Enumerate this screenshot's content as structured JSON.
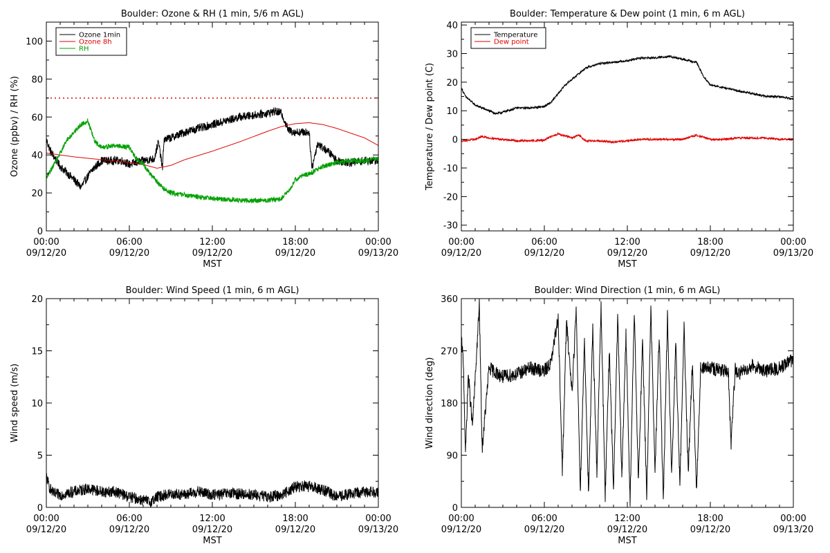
{
  "chart_data": [
    {
      "type": "line",
      "title": "Boulder: Ozone & RH (1 min, 5/6 m AGL)",
      "xlabel": "MST",
      "ylabel": "Ozone (ppbv) / RH (%)",
      "xlim": [
        "09/12/20 00:00",
        "09/13/20 00:00"
      ],
      "xtick_times": [
        "00:00",
        "06:00",
        "12:00",
        "18:00",
        "00:00"
      ],
      "xtick_dates": [
        "09/12/20",
        "09/12/20",
        "09/12/20",
        "09/12/20",
        "09/13/20"
      ],
      "ylim": [
        0,
        110
      ],
      "yticks": [
        0,
        20,
        40,
        60,
        80,
        100
      ],
      "grid": false,
      "legend": "top-left",
      "reference_line": {
        "y": 70,
        "color": "#e00000",
        "style": "dotted"
      },
      "series": [
        {
          "name": "Ozone 1min",
          "color": "#000000",
          "noise": 2.2,
          "x": [
            0,
            0.3,
            1,
            2,
            2.5,
            3.3,
            4,
            5.5,
            6,
            7,
            7.8,
            8.1,
            8.4,
            8.5,
            9,
            10,
            11,
            12,
            13,
            14,
            15,
            16,
            16.5,
            17,
            17.5,
            18,
            19,
            19.2,
            19.6,
            20.5,
            21,
            22,
            23,
            24
          ],
          "y": [
            48,
            42,
            34,
            27,
            23,
            32,
            37,
            37,
            35,
            37,
            38,
            47,
            33,
            48,
            49,
            52,
            54,
            56,
            58,
            60,
            61,
            62,
            63,
            62,
            53,
            52,
            52,
            33,
            46,
            41,
            37,
            36,
            37,
            37
          ]
        },
        {
          "name": "Ozone 8h",
          "color": "#e00000",
          "noise": 0,
          "x": [
            0,
            2,
            4,
            6,
            7,
            8,
            9,
            10,
            12,
            14,
            16,
            17,
            18,
            19,
            20,
            21,
            22,
            23,
            24
          ],
          "y": [
            41,
            39,
            37.5,
            36,
            35,
            33,
            34.5,
            37.5,
            42,
            47,
            52.5,
            55,
            56.5,
            57,
            56,
            54,
            51.5,
            49,
            45
          ]
        },
        {
          "name": "RH",
          "color": "#00a000",
          "noise": 1.3,
          "x": [
            0,
            0.4,
            1,
            1.5,
            2,
            2.5,
            3,
            3.5,
            4,
            5,
            6,
            6.5,
            7,
            7.5,
            8,
            8.5,
            9,
            10,
            11,
            12,
            14,
            16,
            17,
            17.5,
            18,
            18.5,
            19,
            20,
            21,
            22,
            23,
            24
          ],
          "y": [
            28,
            33,
            41,
            48,
            52,
            56,
            58,
            47,
            44,
            45,
            44,
            38,
            35,
            30,
            26,
            22,
            20,
            19,
            18,
            17,
            16,
            16,
            17,
            21,
            27,
            29,
            30,
            34,
            36,
            37,
            37,
            38
          ]
        }
      ]
    },
    {
      "type": "line",
      "title": "Boulder: Temperature & Dew point (1 min, 6 m AGL)",
      "xlabel": "MST",
      "ylabel": "Temperature / Dew point (C)",
      "xlim": [
        "09/12/20 00:00",
        "09/13/20 00:00"
      ],
      "xtick_times": [
        "00:00",
        "06:00",
        "12:00",
        "18:00",
        "00:00"
      ],
      "xtick_dates": [
        "09/12/20",
        "09/12/20",
        "09/12/20",
        "09/12/20",
        "09/13/20"
      ],
      "ylim": [
        -32,
        41
      ],
      "yticks": [
        -30,
        -20,
        -10,
        0,
        10,
        20,
        30,
        40
      ],
      "grid": false,
      "legend": "top-left",
      "series": [
        {
          "name": "Temperature",
          "color": "#000000",
          "noise": 0.35,
          "x": [
            0,
            0.3,
            1,
            2,
            2.5,
            3,
            4,
            5,
            6,
            6.5,
            7,
            7.5,
            8,
            9,
            10,
            11,
            12,
            13,
            14,
            15,
            16,
            16.5,
            17,
            17.5,
            18,
            19,
            20,
            21,
            22,
            23,
            24
          ],
          "y": [
            18,
            15,
            12,
            10,
            9,
            9.5,
            11,
            11,
            11.5,
            13,
            16,
            19,
            21,
            25,
            26.5,
            27,
            27.5,
            28.5,
            28.5,
            29,
            28,
            27.5,
            27,
            22,
            19,
            18,
            17,
            16,
            15,
            15,
            14
          ]
        },
        {
          "name": "Dew point",
          "color": "#e00000",
          "noise": 0.35,
          "x": [
            0,
            1,
            1.5,
            2,
            3,
            4,
            5,
            6,
            6.5,
            7,
            7.3,
            8,
            8.5,
            9,
            10,
            11,
            12,
            13,
            14,
            15,
            16,
            17,
            18,
            19,
            20,
            21,
            22,
            23,
            24
          ],
          "y": [
            -0.5,
            0,
            1,
            0.5,
            0,
            -0.5,
            -0.5,
            -0.3,
            1,
            2,
            1.5,
            0.5,
            1.5,
            -0.5,
            -0.5,
            -1,
            -0.5,
            0,
            0,
            0,
            0,
            1.5,
            0,
            0,
            0.5,
            0.5,
            0.5,
            0,
            0
          ]
        }
      ]
    },
    {
      "type": "line",
      "title": "Boulder: Wind Speed (1 min, 6 m AGL)",
      "xlabel": "MST",
      "ylabel": "Wind speed (m/s)",
      "xlim": [
        "09/12/20 00:00",
        "09/13/20 00:00"
      ],
      "xtick_times": [
        "00:00",
        "06:00",
        "12:00",
        "18:00",
        "00:00"
      ],
      "xtick_dates": [
        "09/12/20",
        "09/12/20",
        "09/12/20",
        "09/12/20",
        "09/13/20"
      ],
      "ylim": [
        0,
        20
      ],
      "yticks": [
        0,
        5,
        10,
        15,
        20
      ],
      "grid": false,
      "series": [
        {
          "color": "#000000",
          "noise": 0.55,
          "x": [
            0,
            0.2,
            0.5,
            1,
            2,
            3,
            4,
            5,
            6,
            7,
            7.5,
            8,
            9,
            10,
            11,
            12,
            13,
            14,
            15,
            16,
            17,
            18,
            19,
            20,
            21,
            22,
            23,
            24
          ],
          "y": [
            3,
            2,
            1.3,
            1.2,
            1.5,
            1.8,
            1.5,
            1.5,
            1,
            0.7,
            0.5,
            1,
            1.3,
            1.2,
            1.5,
            1.2,
            1.3,
            1.3,
            1.2,
            1,
            1.2,
            2,
            2,
            1.7,
            1,
            1.3,
            1.5,
            1.5
          ]
        }
      ]
    },
    {
      "type": "line",
      "title": "Boulder: Wind Direction (1 min, 6 m AGL)",
      "xlabel": "MST",
      "ylabel": "Wind direction (deg)",
      "xlim": [
        "09/12/20 00:00",
        "09/13/20 00:00"
      ],
      "xtick_times": [
        "00:00",
        "06:00",
        "12:00",
        "18:00",
        "00:00"
      ],
      "xtick_dates": [
        "09/12/20",
        "09/12/20",
        "09/12/20",
        "09/12/20",
        "09/13/20"
      ],
      "ylim": [
        0,
        360
      ],
      "yticks": [
        0,
        90,
        180,
        270,
        360
      ],
      "grid": false,
      "series": [
        {
          "color": "#000000",
          "noise": 12,
          "x": [
            0,
            0.15,
            0.3,
            0.5,
            0.8,
            1,
            1.3,
            1.5,
            2,
            3,
            4,
            5,
            6,
            6.5,
            7,
            7.3,
            7.6,
            8,
            8.3,
            8.6,
            8.9,
            9.2,
            9.5,
            9.8,
            10.1,
            10.4,
            10.7,
            11,
            11.3,
            11.6,
            11.9,
            12.2,
            12.5,
            12.8,
            13.1,
            13.4,
            13.7,
            14,
            14.3,
            14.6,
            14.9,
            15.2,
            15.5,
            15.8,
            16.1,
            16.4,
            16.7,
            17,
            17.3,
            18,
            19,
            19.3,
            19.5,
            19.8,
            20,
            21,
            22,
            23,
            24
          ],
          "y": [
            290,
            250,
            90,
            230,
            140,
            220,
            350,
            100,
            240,
            225,
            230,
            240,
            235,
            250,
            330,
            60,
            320,
            200,
            340,
            30,
            290,
            20,
            310,
            60,
            350,
            20,
            270,
            30,
            330,
            50,
            300,
            10,
            340,
            40,
            290,
            20,
            340,
            60,
            300,
            10,
            330,
            50,
            280,
            40,
            310,
            60,
            250,
            30,
            240,
            240,
            235,
            230,
            110,
            240,
            230,
            245,
            235,
            240,
            255
          ]
        }
      ]
    }
  ]
}
